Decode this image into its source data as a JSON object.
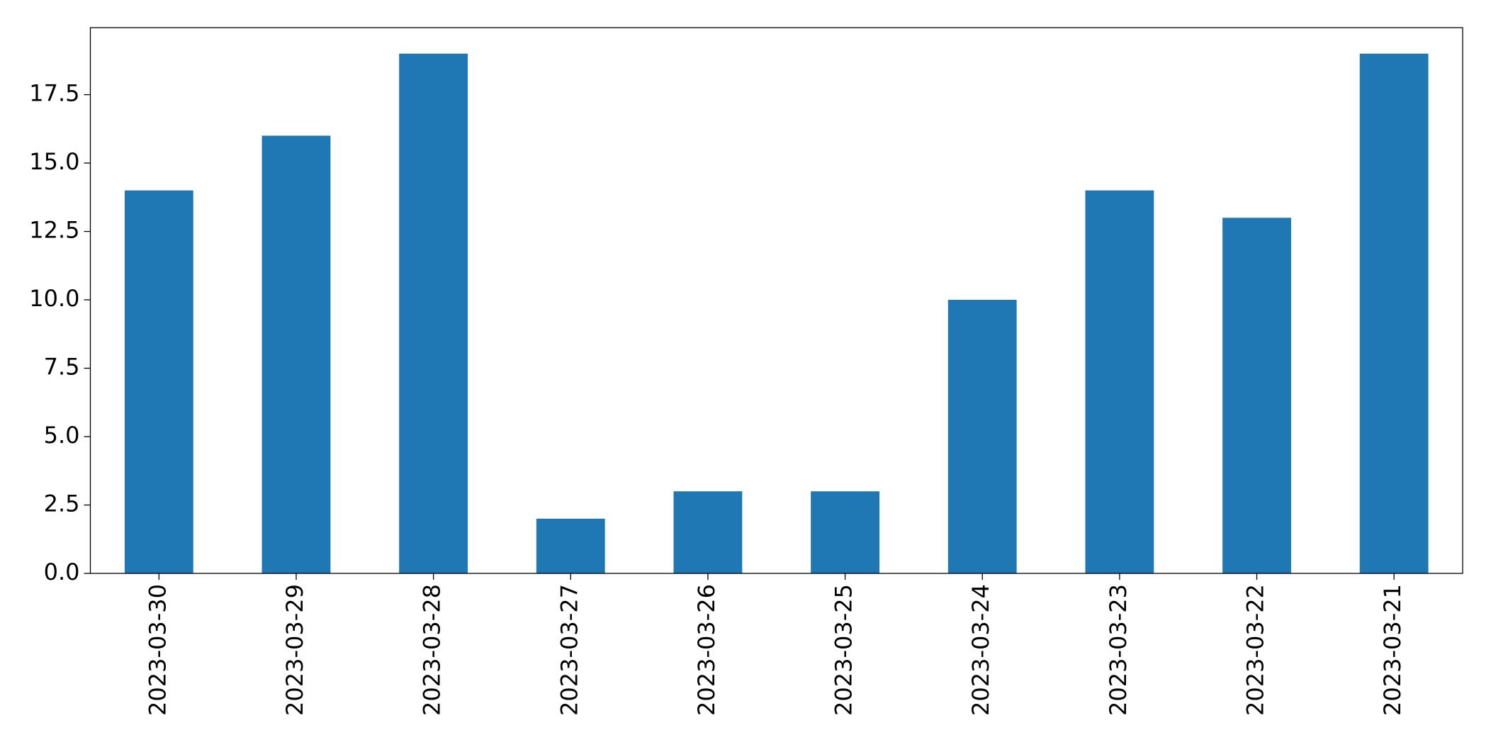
{
  "chart_data": {
    "type": "bar",
    "categories": [
      "2023-03-30",
      "2023-03-29",
      "2023-03-28",
      "2023-03-27",
      "2023-03-26",
      "2023-03-25",
      "2023-03-24",
      "2023-03-23",
      "2023-03-22",
      "2023-03-21"
    ],
    "values": [
      14,
      16,
      19,
      2,
      3,
      3,
      10,
      14,
      13,
      19
    ],
    "color": "#1f77b4",
    "ylim": [
      0,
      19.95
    ],
    "yticks": [
      {
        "value": 0,
        "label": "0.0"
      },
      2.5,
      {
        "value": 5,
        "label": "5.0"
      },
      7.5,
      {
        "value": 10,
        "label": "10.0"
      },
      12.5,
      {
        "value": 15,
        "label": "15.0"
      },
      17.5
    ],
    "grid": false
  }
}
